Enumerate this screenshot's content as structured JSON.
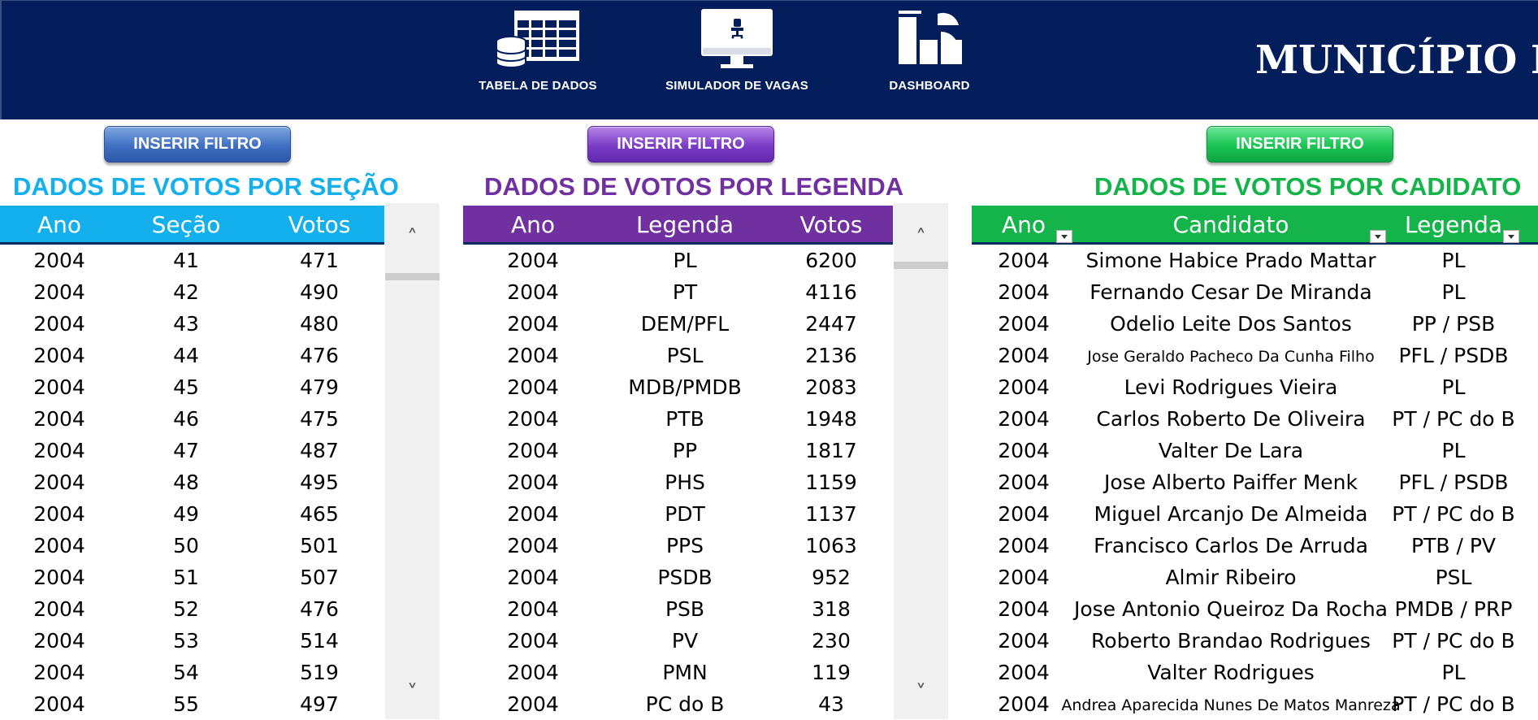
{
  "header": {
    "nav": [
      {
        "label": "TABELA DE DADOS",
        "icon": "database-table-icon"
      },
      {
        "label": "SIMULADOR DE VAGAS",
        "icon": "monitor-chair-icon"
      },
      {
        "label": "DASHBOARD",
        "icon": "dashboard-icon"
      }
    ],
    "title": "MUNICÍPIO DE"
  },
  "colors": {
    "header_bg": "#041e5c",
    "secao": "#14b0ee",
    "legenda": "#7030a0",
    "candidato": "#14b44a"
  },
  "secao": {
    "filter_label": "INSERIR FILTRO",
    "title": "DADOS DE VOTOS POR SEÇÃO",
    "columns": [
      "Ano",
      "Seção",
      "Votos"
    ],
    "rows": [
      [
        "2004",
        "41",
        "471"
      ],
      [
        "2004",
        "42",
        "490"
      ],
      [
        "2004",
        "43",
        "480"
      ],
      [
        "2004",
        "44",
        "476"
      ],
      [
        "2004",
        "45",
        "479"
      ],
      [
        "2004",
        "46",
        "475"
      ],
      [
        "2004",
        "47",
        "487"
      ],
      [
        "2004",
        "48",
        "495"
      ],
      [
        "2004",
        "49",
        "465"
      ],
      [
        "2004",
        "50",
        "501"
      ],
      [
        "2004",
        "51",
        "507"
      ],
      [
        "2004",
        "52",
        "476"
      ],
      [
        "2004",
        "53",
        "514"
      ],
      [
        "2004",
        "54",
        "519"
      ],
      [
        "2004",
        "55",
        "497"
      ]
    ]
  },
  "legenda": {
    "filter_label": "INSERIR FILTRO",
    "title": "DADOS DE VOTOS POR LEGENDA",
    "columns": [
      "Ano",
      "Legenda",
      "Votos"
    ],
    "rows": [
      [
        "2004",
        "PL",
        "6200"
      ],
      [
        "2004",
        "PT",
        "4116"
      ],
      [
        "2004",
        "DEM/PFL",
        "2447"
      ],
      [
        "2004",
        "PSL",
        "2136"
      ],
      [
        "2004",
        "MDB/PMDB",
        "2083"
      ],
      [
        "2004",
        "PTB",
        "1948"
      ],
      [
        "2004",
        "PP",
        "1817"
      ],
      [
        "2004",
        "PHS",
        "1159"
      ],
      [
        "2004",
        "PDT",
        "1137"
      ],
      [
        "2004",
        "PPS",
        "1063"
      ],
      [
        "2004",
        "PSDB",
        "952"
      ],
      [
        "2004",
        "PSB",
        "318"
      ],
      [
        "2004",
        "PV",
        "230"
      ],
      [
        "2004",
        "PMN",
        "119"
      ],
      [
        "2004",
        "PC do B",
        "43"
      ]
    ]
  },
  "candidato": {
    "filter_label": "INSERIR FILTRO",
    "title": "DADOS DE VOTOS POR CADIDATO",
    "columns": [
      "Ano",
      "Candidato",
      "Legenda"
    ],
    "rows": [
      [
        "2004",
        "Simone Habice Prado Mattar",
        "PL"
      ],
      [
        "2004",
        "Fernando Cesar De Miranda",
        "PL"
      ],
      [
        "2004",
        "Odelio Leite Dos Santos",
        "PP / PSB"
      ],
      [
        "2004",
        "Jose Geraldo Pacheco Da Cunha Filho",
        "PFL / PSDB"
      ],
      [
        "2004",
        "Levi Rodrigues Vieira",
        "PL"
      ],
      [
        "2004",
        "Carlos Roberto De Oliveira",
        "PT / PC do B"
      ],
      [
        "2004",
        "Valter De Lara",
        "PL"
      ],
      [
        "2004",
        "Jose Alberto Paiffer Menk",
        "PFL / PSDB"
      ],
      [
        "2004",
        "Miguel Arcanjo De Almeida",
        "PT / PC do B"
      ],
      [
        "2004",
        "Francisco Carlos De Arruda",
        "PTB / PV"
      ],
      [
        "2004",
        "Almir Ribeiro",
        "PSL"
      ],
      [
        "2004",
        "Jose Antonio Queiroz Da Rocha",
        "PMDB / PRP"
      ],
      [
        "2004",
        "Roberto Brandao Rodrigues",
        "PT / PC do B"
      ],
      [
        "2004",
        "Valter Rodrigues",
        "PL"
      ],
      [
        "2004",
        "Andrea Aparecida Nunes De Matos Manreza",
        "PT / PC do B"
      ]
    ]
  },
  "scrollbar": {
    "up": "˄",
    "down": "˅"
  }
}
